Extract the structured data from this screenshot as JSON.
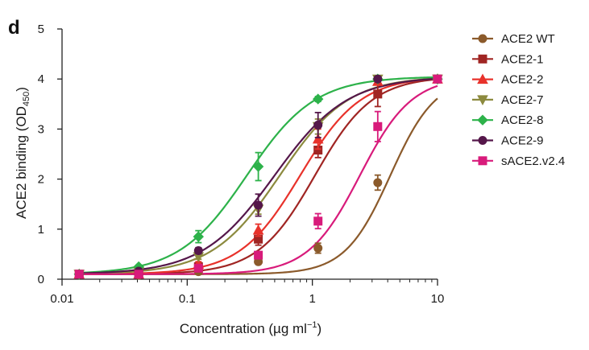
{
  "figure": {
    "panel_label": "d"
  },
  "chart_data": {
    "type": "line",
    "xlabel": "Concentration (µg ml",
    "xlabel_sup": "−1",
    "xlabel_suffix": ")",
    "ylabel": "ACE2 binding (OD",
    "ylabel_sub": "450",
    "ylabel_suffix": ")",
    "xscale": "log",
    "xlim": [
      0.01,
      10
    ],
    "ylim": [
      0,
      5
    ],
    "x_ticks": [
      0.01,
      0.1,
      1,
      10
    ],
    "x_tick_labels": [
      "0.01",
      "0.1",
      "1",
      "10"
    ],
    "y_ticks": [
      0,
      1,
      2,
      3,
      4,
      5
    ],
    "y_tick_labels": [
      "0",
      "1",
      "2",
      "3",
      "4",
      "5"
    ],
    "legend_position": "right",
    "x": [
      0.0137,
      0.041,
      0.123,
      0.37,
      1.11,
      3.33,
      10
    ],
    "series": [
      {
        "name": "ACE2 WT",
        "color": "#8b5a2b",
        "marker": "circle",
        "values": [
          0.1,
          0.08,
          0.15,
          0.35,
          0.62,
          1.93,
          4.0
        ],
        "errors": [
          0.04,
          0.03,
          0.04,
          0.05,
          0.1,
          0.15,
          0.03
        ],
        "fit": {
          "bottom": 0.1,
          "top": 4.05,
          "ec50": 4.2,
          "hill": 2.4
        }
      },
      {
        "name": "ACE2-1",
        "color": "#a02523",
        "marker": "square",
        "values": [
          0.1,
          0.1,
          0.25,
          0.8,
          2.58,
          3.7,
          4.0
        ],
        "errors": [
          0.04,
          0.03,
          0.05,
          0.12,
          0.15,
          0.25,
          0.03
        ],
        "fit": {
          "bottom": 0.1,
          "top": 4.05,
          "ec50": 1.05,
          "hill": 1.9
        }
      },
      {
        "name": "ACE2-2",
        "color": "#e8322b",
        "marker": "triangle-up",
        "values": [
          0.1,
          0.1,
          0.3,
          0.98,
          2.8,
          3.95,
          4.0
        ],
        "errors": [
          0.04,
          0.03,
          0.05,
          0.12,
          0.2,
          0.05,
          0.03
        ],
        "fit": {
          "bottom": 0.1,
          "top": 4.05,
          "ec50": 0.8,
          "hill": 1.8
        }
      },
      {
        "name": "ACE2-7",
        "color": "#8c8a3e",
        "marker": "triangle-down",
        "values": [
          0.1,
          0.15,
          0.45,
          1.4,
          3.05,
          4.0,
          4.0
        ],
        "errors": [
          0.04,
          0.03,
          0.05,
          0.1,
          0.15,
          0.05,
          0.03
        ],
        "fit": {
          "bottom": 0.1,
          "top": 4.05,
          "ec50": 0.55,
          "hill": 1.6
        }
      },
      {
        "name": "ACE2-8",
        "color": "#2db24a",
        "marker": "diamond",
        "values": [
          0.1,
          0.25,
          0.85,
          2.25,
          3.6,
          4.0,
          4.0
        ],
        "errors": [
          0.04,
          0.03,
          0.12,
          0.28,
          0.05,
          0.05,
          0.03
        ],
        "fit": {
          "bottom": 0.1,
          "top": 4.05,
          "ec50": 0.3,
          "hill": 1.6
        }
      },
      {
        "name": "ACE2-9",
        "color": "#55174a",
        "marker": "circle",
        "values": [
          0.1,
          0.16,
          0.57,
          1.48,
          3.08,
          4.0,
          4.0
        ],
        "errors": [
          0.04,
          0.03,
          0.06,
          0.22,
          0.25,
          0.05,
          0.03
        ],
        "fit": {
          "bottom": 0.1,
          "top": 4.05,
          "ec50": 0.5,
          "hill": 1.5
        }
      },
      {
        "name": "sACE2.v2.4",
        "color": "#d81b7b",
        "marker": "square",
        "values": [
          0.1,
          0.1,
          0.22,
          0.48,
          1.16,
          3.05,
          4.0
        ],
        "errors": [
          0.04,
          0.03,
          0.04,
          0.05,
          0.15,
          0.3,
          0.03
        ],
        "fit": {
          "bottom": 0.1,
          "top": 4.05,
          "ec50": 2.4,
          "hill": 2.1
        }
      }
    ]
  }
}
